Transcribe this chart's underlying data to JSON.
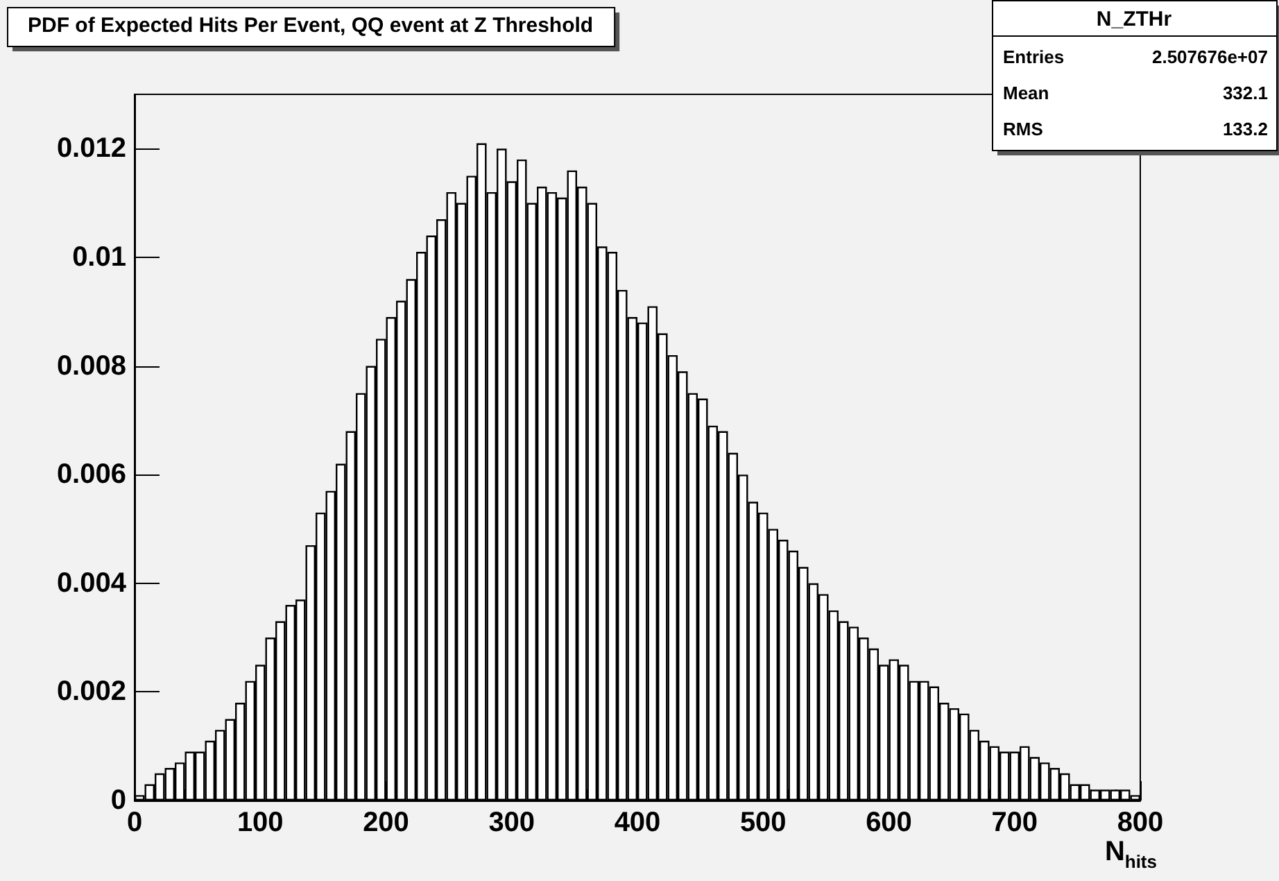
{
  "chart_data": {
    "type": "histogram",
    "title": "PDF of Expected Hits Per Event, QQ event at Z Threshold",
    "xlabel": "N$_{hits}$",
    "annotations": [
      "N_ZTHr",
      "Entries",
      "2.507676e+07",
      "Mean",
      "332.1",
      "RMS",
      "133.2"
    ],
    "bins": [
      0,
      8,
      16,
      24,
      32,
      40,
      48,
      56,
      64,
      72,
      80,
      88,
      96,
      104,
      112,
      120,
      128,
      136,
      144,
      152,
      160,
      168,
      176,
      184,
      192,
      200,
      208,
      216,
      224,
      232,
      240,
      248,
      256,
      264,
      272,
      280,
      288,
      296,
      304,
      312,
      320,
      328,
      336,
      344,
      352,
      360,
      368,
      376,
      384,
      392,
      400,
      408,
      416,
      424,
      432,
      440,
      448,
      456,
      464,
      472,
      480,
      488,
      496,
      504,
      512,
      520,
      528,
      536,
      544,
      552,
      560,
      568,
      576,
      584,
      592,
      600,
      608,
      616,
      624,
      632,
      640,
      648,
      656,
      664,
      672,
      680,
      688,
      696,
      704,
      712,
      720,
      728,
      736,
      744,
      752,
      760,
      768,
      776,
      784,
      792,
      800
    ],
    "values": [
      0.0001,
      0.0003,
      0.0005,
      0.0006,
      0.0007,
      0.0009,
      0.0009,
      0.0011,
      0.0013,
      0.0015,
      0.0018,
      0.0022,
      0.0025,
      0.003,
      0.0033,
      0.0036,
      0.0037,
      0.0047,
      0.0053,
      0.0057,
      0.0062,
      0.0068,
      0.0075,
      0.008,
      0.0085,
      0.0089,
      0.0092,
      0.0096,
      0.0101,
      0.0104,
      0.0107,
      0.0112,
      0.011,
      0.0115,
      0.0121,
      0.0112,
      0.012,
      0.0114,
      0.0118,
      0.011,
      0.0113,
      0.0112,
      0.0111,
      0.0116,
      0.0113,
      0.011,
      0.0102,
      0.0101,
      0.0094,
      0.0089,
      0.0088,
      0.0091,
      0.0086,
      0.0082,
      0.0079,
      0.0075,
      0.0074,
      0.0069,
      0.0068,
      0.0064,
      0.006,
      0.0055,
      0.0053,
      0.005,
      0.0048,
      0.0046,
      0.0043,
      0.004,
      0.0038,
      0.0035,
      0.0033,
      0.0032,
      0.003,
      0.0028,
      0.0025,
      0.0026,
      0.0025,
      0.0022,
      0.0022,
      0.0021,
      0.0018,
      0.0017,
      0.0016,
      0.0013,
      0.0011,
      0.001,
      0.0009,
      0.0009,
      0.001,
      0.0008,
      0.0007,
      0.0006,
      0.0005,
      0.0003,
      0.0003,
      0.0002,
      0.0002,
      0.0002,
      0.0002,
      0.0001
    ],
    "color": "#000000",
    "xlim": [
      0,
      800
    ],
    "xticks": [
      0,
      100,
      200,
      300,
      400,
      500,
      600,
      700,
      800
    ],
    "ylim": [
      0,
      0.013
    ],
    "yticks": [
      0,
      0.002,
      0.004,
      0.006,
      0.008,
      0.01,
      0.012
    ],
    "grid": false
  }
}
